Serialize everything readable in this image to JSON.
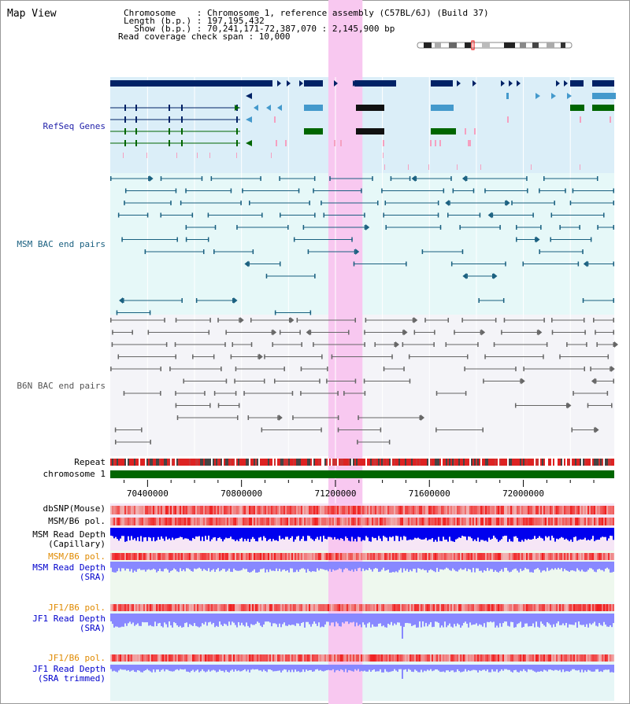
{
  "header": {
    "title": "Map View",
    "info_lines": [
      "Chromosome    : Chromosome 1, reference assembly (C57BL/6J) (Build 37)",
      "Length (b.p.) : 197,195,432",
      "  Show (b.p.) : 70,241,171-72,387,070 : 2,145,900 bp",
      "Read coverage check span : 10,000"
    ]
  },
  "tracks": {
    "refseq": {
      "label": "RefSeq Genes",
      "color": "#2222aa"
    },
    "msm_bac": {
      "label": "MSM BAC end pairs",
      "color": "#1a6080"
    },
    "b6n_bac": {
      "label": "B6N BAC end pairs",
      "color": "#555555"
    },
    "repeat": {
      "label": "Repeat"
    },
    "chromosome": {
      "label": "chromosome 1"
    },
    "dbsnp": {
      "label": "dbSNP(Mouse)",
      "color": "#000000"
    },
    "msm_b6_pol_1": {
      "label": "MSM/B6 pol.",
      "color": "#000000"
    },
    "msm_depth_cap": {
      "label": "MSM Read Depth\n(Capillary)",
      "color": "#000000"
    },
    "msm_b6_pol_2": {
      "label": "MSM/B6 pol.",
      "color": "#e08a00"
    },
    "msm_depth_sra": {
      "label": "MSM Read Depth\n(SRA)",
      "color": "#0000cc"
    },
    "jf1_b6_pol_1": {
      "label": "JF1/B6 pol.",
      "color": "#e08a00"
    },
    "jf1_depth_sra": {
      "label": "JF1 Read Depth\n(SRA)",
      "color": "#0000cc"
    },
    "jf1_b6_pol_2": {
      "label": "JF1/B6 pol.",
      "color": "#e08a00"
    },
    "jf1_depth_trim": {
      "label": "JF1 Read Depth\n(SRA trimmed)",
      "color": "#0000cc"
    }
  },
  "axis": {
    "start": 70241171,
    "end": 72387070,
    "ticks": [
      {
        "value": 70400000,
        "label": "70400000"
      },
      {
        "value": 70800000,
        "label": "70800000"
      },
      {
        "value": 71200000,
        "label": "71200000"
      },
      {
        "value": 71600000,
        "label": "71600000"
      },
      {
        "value": 72000000,
        "label": "72000000"
      }
    ]
  },
  "highlight": {
    "start": 71170000,
    "end": 71315000
  },
  "colors": {
    "refseq_bg": "#dbeef8",
    "msm_bg": "#e6f8f8",
    "b6n_bg": "#f4f4f8",
    "depth_bg": "#f6e6f6",
    "sra_bg": "#eef8ee",
    "jf1_bg": "#e6f6f6",
    "highlight": "#f8c8f0",
    "refseq_dark": "#002266",
    "refseq_light": "#4499cc",
    "refseq_green": "#006600",
    "msm_line": "#1a6080",
    "b6n_line": "#666666",
    "chromosome": "#006600",
    "depth_dark": "#0000ee",
    "depth_light": "#8888ff"
  }
}
